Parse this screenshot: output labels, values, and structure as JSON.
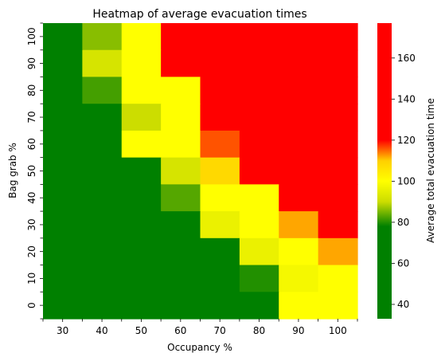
{
  "chart_data": {
    "type": "heatmap",
    "title": "Heatmap of average evacuation times",
    "xlabel": "Occupancy %",
    "ylabel": "Bag grab %",
    "x_categories": [
      "30",
      "40",
      "50",
      "60",
      "70",
      "80",
      "90",
      "100"
    ],
    "y_categories": [
      "100",
      "90",
      "80",
      "70",
      "60",
      "50",
      "40",
      "30",
      "20",
      "10",
      "0"
    ],
    "values": [
      [
        73,
        86,
        100,
        169,
        178,
        178,
        178,
        178
      ],
      [
        60,
        92,
        100,
        176,
        178,
        178,
        178,
        178
      ],
      [
        60,
        82,
        100,
        100,
        178,
        178,
        178,
        178
      ],
      [
        60,
        78,
        90,
        100,
        124,
        178,
        178,
        178
      ],
      [
        60,
        60,
        100,
        100,
        116,
        178,
        178,
        178
      ],
      [
        60,
        60,
        60,
        92,
        108,
        132,
        178,
        178
      ],
      [
        60,
        60,
        60,
        83,
        100,
        100,
        178,
        178
      ],
      [
        60,
        60,
        60,
        66,
        96,
        100,
        112,
        178
      ],
      [
        60,
        60,
        60,
        60,
        76,
        96,
        100,
        112
      ],
      [
        60,
        60,
        60,
        60,
        60,
        80,
        98,
        100
      ],
      [
        60,
        60,
        60,
        60,
        60,
        60,
        100,
        100
      ]
    ],
    "colormap": {
      "stops": [
        {
          "value": 33,
          "color": "#008000"
        },
        {
          "value": 78,
          "color": "#008000"
        },
        {
          "value": 90,
          "color": "#ccdd00"
        },
        {
          "value": 100,
          "color": "#ffff00"
        },
        {
          "value": 110,
          "color": "#ffd000"
        },
        {
          "value": 120,
          "color": "#ff0000"
        },
        {
          "value": 177,
          "color": "#ff0000"
        }
      ]
    },
    "colorbar": {
      "label": "Average total evacuation time",
      "range": [
        33,
        177
      ],
      "ticks": [
        40,
        60,
        80,
        100,
        120,
        140,
        160
      ]
    }
  }
}
